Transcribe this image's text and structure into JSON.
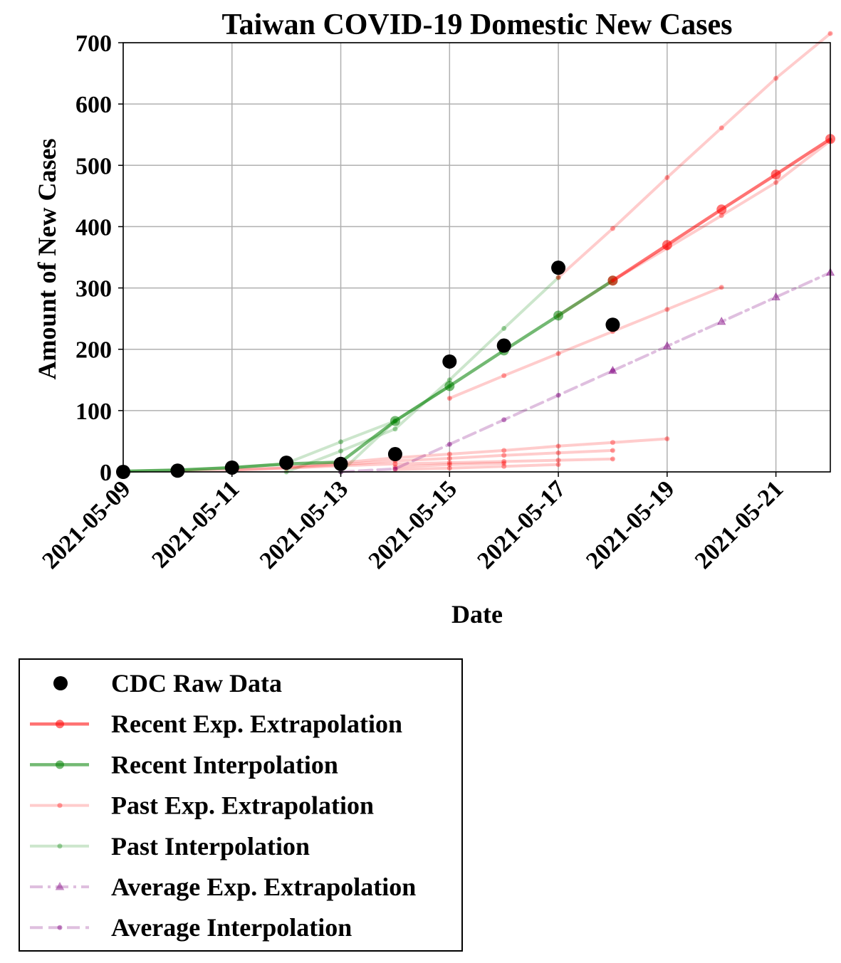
{
  "chart_data": {
    "type": "line",
    "title": "Taiwan COVID-19 Domestic New Cases",
    "xlabel": "Date",
    "ylabel": "Amount of New Cases",
    "x_ticks": [
      "2021-05-09",
      "2021-05-11",
      "2021-05-13",
      "2021-05-15",
      "2021-05-17",
      "2021-05-19",
      "2021-05-21"
    ],
    "y_ticks": [
      0,
      100,
      200,
      300,
      400,
      500,
      600,
      700
    ],
    "xlim": [
      "2021-05-09",
      "2021-05-22"
    ],
    "ylim": [
      0,
      700
    ],
    "grid": true,
    "legend_position": "below",
    "series": [
      {
        "name": "CDC Raw Data",
        "kind": "scatter",
        "color": "#000000",
        "points": [
          [
            "2021-05-09",
            0
          ],
          [
            "2021-05-10",
            2
          ],
          [
            "2021-05-11",
            7
          ],
          [
            "2021-05-12",
            15
          ],
          [
            "2021-05-13",
            13
          ],
          [
            "2021-05-14",
            29
          ],
          [
            "2021-05-15",
            180
          ],
          [
            "2021-05-16",
            206
          ],
          [
            "2021-05-17",
            333
          ],
          [
            "2021-05-18",
            240
          ]
        ]
      },
      {
        "name": "Recent Exp. Extrapolation",
        "kind": "line",
        "color": "#ff0000",
        "points": [
          [
            "2021-05-18",
            312
          ],
          [
            "2021-05-19",
            370
          ],
          [
            "2021-05-20",
            428
          ],
          [
            "2021-05-21",
            485
          ],
          [
            "2021-05-22",
            543
          ]
        ]
      },
      {
        "name": "Recent Interpolation",
        "kind": "line",
        "color": "#008000",
        "points": [
          [
            "2021-05-09",
            1
          ],
          [
            "2021-05-10",
            3
          ],
          [
            "2021-05-11",
            7
          ],
          [
            "2021-05-12",
            13
          ],
          [
            "2021-05-13",
            16
          ],
          [
            "2021-05-14",
            83
          ],
          [
            "2021-05-15",
            140
          ],
          [
            "2021-05-16",
            198
          ],
          [
            "2021-05-17",
            255
          ],
          [
            "2021-05-18",
            312
          ]
        ]
      },
      {
        "name": "Past Exp. Extrapolation",
        "kind": "multi-line",
        "color": "#ff0000",
        "lines": [
          [
            [
              "2021-05-10",
              1
            ],
            [
              "2021-05-11",
              3
            ],
            [
              "2021-05-12",
              6
            ],
            [
              "2021-05-13",
              10
            ],
            [
              "2021-05-14",
              13
            ],
            [
              "2021-05-15",
              15
            ],
            [
              "2021-05-16",
              17
            ],
            [
              "2021-05-17",
              19
            ],
            [
              "2021-05-18",
              21
            ]
          ],
          [
            [
              "2021-05-11",
              3
            ],
            [
              "2021-05-12",
              7
            ],
            [
              "2021-05-13",
              12
            ],
            [
              "2021-05-14",
              18
            ],
            [
              "2021-05-15",
              22
            ],
            [
              "2021-05-16",
              27
            ],
            [
              "2021-05-17",
              31
            ],
            [
              "2021-05-18",
              35
            ]
          ],
          [
            [
              "2021-05-12",
              8
            ],
            [
              "2021-05-13",
              15
            ],
            [
              "2021-05-14",
              23
            ],
            [
              "2021-05-15",
              29
            ],
            [
              "2021-05-16",
              35
            ],
            [
              "2021-05-17",
              42
            ],
            [
              "2021-05-18",
              48
            ],
            [
              "2021-05-19",
              54
            ]
          ],
          [
            [
              "2021-05-14",
              4
            ],
            [
              "2021-05-15",
              6
            ],
            [
              "2021-05-16",
              9
            ],
            [
              "2021-05-17",
              12
            ]
          ],
          [
            [
              "2021-05-14",
              8
            ],
            [
              "2021-05-15",
              12
            ],
            [
              "2021-05-16",
              14
            ]
          ],
          [
            [
              "2021-05-15",
              120
            ],
            [
              "2021-05-16",
              157
            ],
            [
              "2021-05-17",
              193
            ],
            [
              "2021-05-18",
              229
            ],
            [
              "2021-05-19",
              265
            ],
            [
              "2021-05-20",
              301
            ]
          ],
          [
            [
              "2021-05-17",
              317
            ],
            [
              "2021-05-18",
              397
            ],
            [
              "2021-05-19",
              480
            ],
            [
              "2021-05-20",
              561
            ],
            [
              "2021-05-21",
              642
            ],
            [
              "2021-05-22",
              715
            ]
          ],
          [
            [
              "2021-05-17",
              255
            ],
            [
              "2021-05-18",
              312
            ],
            [
              "2021-05-19",
              365
            ],
            [
              "2021-05-20",
              418
            ],
            [
              "2021-05-21",
              472
            ],
            [
              "2021-05-22",
              540
            ]
          ]
        ]
      },
      {
        "name": "Past Interpolation",
        "kind": "multi-line",
        "color": "#008000",
        "lines": [
          [
            [
              "2021-05-09",
              1
            ],
            [
              "2021-05-10",
              3
            ],
            [
              "2021-05-11",
              7
            ],
            [
              "2021-05-12",
              13
            ]
          ],
          [
            [
              "2021-05-12",
              14
            ],
            [
              "2021-05-13",
              49
            ],
            [
              "2021-05-14",
              83
            ]
          ],
          [
            [
              "2021-05-12",
              0
            ],
            [
              "2021-05-13",
              34
            ],
            [
              "2021-05-14",
              70
            ],
            [
              "2021-05-15",
              150
            ],
            [
              "2021-05-16",
              234
            ],
            [
              "2021-05-17",
              317
            ]
          ],
          [
            [
              "2021-05-13",
              0
            ],
            [
              "2021-05-14",
              83
            ],
            [
              "2021-05-15",
              140
            ]
          ]
        ]
      },
      {
        "name": "Average Exp. Extrapolation",
        "kind": "line",
        "color": "#800080",
        "dash": "dashdot",
        "marker": "triangle",
        "points": [
          [
            "2021-05-18",
            165
          ],
          [
            "2021-05-19",
            205
          ],
          [
            "2021-05-20",
            245
          ],
          [
            "2021-05-21",
            285
          ],
          [
            "2021-05-22",
            325
          ]
        ]
      },
      {
        "name": "Average Interpolation",
        "kind": "line",
        "color": "#800080",
        "dash": "dashed",
        "marker": "dot",
        "points": [
          [
            "2021-05-13",
            0
          ],
          [
            "2021-05-14",
            5
          ],
          [
            "2021-05-15",
            45
          ],
          [
            "2021-05-16",
            85
          ],
          [
            "2021-05-17",
            125
          ],
          [
            "2021-05-18",
            165
          ]
        ]
      }
    ]
  }
}
